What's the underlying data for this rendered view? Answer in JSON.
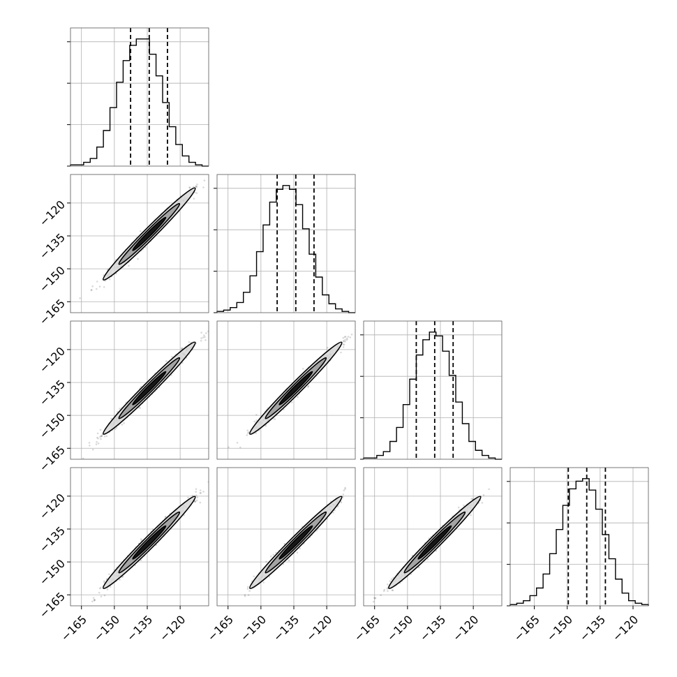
{
  "chart_data": {
    "type": "corner",
    "n_params": 4,
    "xlim": [
      -170,
      -107
    ],
    "ylim": [
      -170,
      -107
    ],
    "ticks": [
      -165,
      -150,
      -135,
      -120
    ],
    "tick_labels": [
      "−165",
      "−150",
      "−135",
      "−120"
    ],
    "diag_ticks_last": [
      -165,
      -150,
      -135,
      -120
    ],
    "diag_tick_labels_last": [
      "−165",
      "−150",
      "−135",
      "−120"
    ],
    "grid": true,
    "histograms": [
      {
        "bin_edges": [
          -170.0,
          -167.0,
          -164.0,
          -161.0,
          -158.0,
          -155.0,
          -152.0,
          -149.0,
          -146.0,
          -143.0,
          -140.0,
          -137.0,
          -134.0,
          -131.0,
          -128.0,
          -125.0,
          -122.0,
          -119.0,
          -116.0,
          -113.0,
          -110.0,
          -107.0
        ],
        "counts": [
          0.01,
          0.01,
          0.03,
          0.06,
          0.15,
          0.28,
          0.46,
          0.66,
          0.83,
          0.95,
          1.0,
          1.0,
          0.88,
          0.71,
          0.5,
          0.31,
          0.17,
          0.08,
          0.03,
          0.01,
          0.0
        ],
        "quantiles": [
          -142.6,
          -134.1,
          -125.8
        ]
      },
      {
        "bin_edges": [
          -170.0,
          -167.0,
          -164.0,
          -161.0,
          -158.0,
          -155.0,
          -152.0,
          -149.0,
          -146.0,
          -143.0,
          -140.0,
          -137.0,
          -134.0,
          -131.0,
          -128.0,
          -125.0,
          -122.0,
          -119.0,
          -116.0,
          -113.0,
          -110.0,
          -107.0
        ],
        "counts": [
          0.01,
          0.02,
          0.04,
          0.08,
          0.16,
          0.29,
          0.48,
          0.69,
          0.87,
          0.97,
          1.0,
          0.97,
          0.85,
          0.66,
          0.46,
          0.28,
          0.14,
          0.07,
          0.03,
          0.01,
          0.0
        ],
        "quantiles": [
          -142.6,
          -134.1,
          -125.8
        ]
      },
      {
        "bin_edges": [
          -170.0,
          -167.0,
          -164.0,
          -161.0,
          -158.0,
          -155.0,
          -152.0,
          -149.0,
          -146.0,
          -143.0,
          -140.0,
          -137.0,
          -134.0,
          -131.0,
          -128.0,
          -125.0,
          -122.0,
          -119.0,
          -116.0,
          -113.0,
          -110.0,
          -107.0
        ],
        "counts": [
          0.01,
          0.01,
          0.03,
          0.06,
          0.14,
          0.25,
          0.43,
          0.63,
          0.82,
          0.94,
          1.0,
          0.97,
          0.85,
          0.66,
          0.45,
          0.28,
          0.14,
          0.07,
          0.03,
          0.01,
          0.0
        ],
        "quantiles": [
          -146.0,
          -137.6,
          -129.2
        ]
      },
      {
        "bin_edges": [
          -176.0,
          -173.0,
          -170.0,
          -167.0,
          -164.0,
          -161.0,
          -158.0,
          -155.0,
          -152.0,
          -149.0,
          -146.0,
          -143.0,
          -140.0,
          -137.0,
          -134.0,
          -131.0,
          -128.0,
          -125.0,
          -122.0,
          -119.0,
          -116.0,
          -113.0
        ],
        "counts": [
          0.01,
          0.02,
          0.04,
          0.08,
          0.14,
          0.25,
          0.41,
          0.6,
          0.79,
          0.92,
          0.98,
          1.0,
          0.91,
          0.76,
          0.56,
          0.37,
          0.21,
          0.1,
          0.04,
          0.02,
          0.01
        ],
        "quantiles": [
          -149.5,
          -141.1,
          -132.6
        ],
        "xlim": [
          -176,
          -113
        ]
      }
    ],
    "pairs": [
      {
        "row": 1,
        "col": 0,
        "center": [
          -134.1,
          -134.1
        ],
        "sigma": [
          8.4,
          8.4
        ],
        "rho": 0.985
      },
      {
        "row": 2,
        "col": 0,
        "center": [
          -134.1,
          -137.6
        ],
        "sigma": [
          8.4,
          8.4
        ],
        "rho": 0.985
      },
      {
        "row": 2,
        "col": 1,
        "center": [
          -134.1,
          -137.6
        ],
        "sigma": [
          8.4,
          8.4
        ],
        "rho": 0.985
      },
      {
        "row": 3,
        "col": 0,
        "center": [
          -134.1,
          -141.1
        ],
        "sigma": [
          8.4,
          8.4
        ],
        "rho": 0.985
      },
      {
        "row": 3,
        "col": 1,
        "center": [
          -134.1,
          -141.1
        ],
        "sigma": [
          8.4,
          8.4
        ],
        "rho": 0.985
      },
      {
        "row": 3,
        "col": 2,
        "center": [
          -137.6,
          -141.1
        ],
        "sigma": [
          8.4,
          8.4
        ],
        "rho": 0.985
      }
    ],
    "colors": {
      "line": "#000000",
      "grid": "#b0b0b0",
      "fill_outer": "#d9d9d9",
      "fill_mid": "#9a9a9a",
      "fill_inner": "#000000",
      "scatter": "#333333"
    }
  }
}
